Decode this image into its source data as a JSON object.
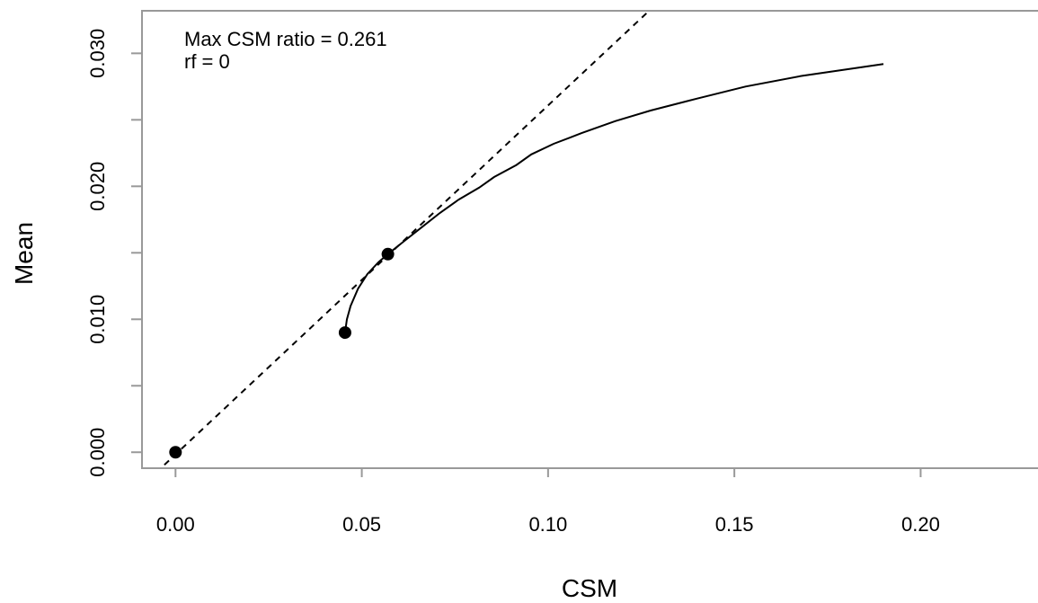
{
  "chart_data": {
    "type": "line",
    "xlabel": "CSM",
    "ylabel": "Mean",
    "xlim": [
      -0.009,
      0.2315
    ],
    "ylim": [
      -0.0012,
      0.0332
    ],
    "x_ticks": [
      0.0,
      0.05,
      0.1,
      0.15,
      0.2
    ],
    "x_tick_labels": [
      "0.00",
      "0.05",
      "0.10",
      "0.15",
      "0.20"
    ],
    "y_ticks": [
      0.0,
      0.005,
      0.01,
      0.015,
      0.02,
      0.025,
      0.03
    ],
    "y_tick_labels": [
      "0.000",
      "",
      "0.010",
      "",
      "0.020",
      "",
      "0.030"
    ],
    "grid": false,
    "annotations": [
      "Max CSM ratio = 0.261",
      "rf = 0"
    ],
    "series": [
      {
        "style": "solid",
        "x": [
          0.0455,
          0.046,
          0.047,
          0.049,
          0.0515,
          0.0545,
          0.057,
          0.061,
          0.066,
          0.071,
          0.076,
          0.0815,
          0.0855,
          0.0915,
          0.0955,
          0.1015,
          0.109,
          0.118,
          0.1275,
          0.14,
          0.153,
          0.168,
          0.19
        ],
        "y": [
          0.009,
          0.01,
          0.011,
          0.0123,
          0.0134,
          0.0143,
          0.0149,
          0.0158,
          0.0169,
          0.018,
          0.019,
          0.0199,
          0.0207,
          0.0216,
          0.0224,
          0.0232,
          0.024,
          0.0249,
          0.0257,
          0.0266,
          0.0275,
          0.0283,
          0.0292
        ]
      },
      {
        "style": "dashed",
        "x": [
          -0.003,
          0.1275
        ],
        "y": [
          -0.00095,
          0.0333
        ]
      }
    ],
    "points": [
      {
        "x": 0.0,
        "y": 0.0
      },
      {
        "x": 0.0455,
        "y": 0.009
      },
      {
        "x": 0.057,
        "y": 0.0149
      }
    ]
  }
}
